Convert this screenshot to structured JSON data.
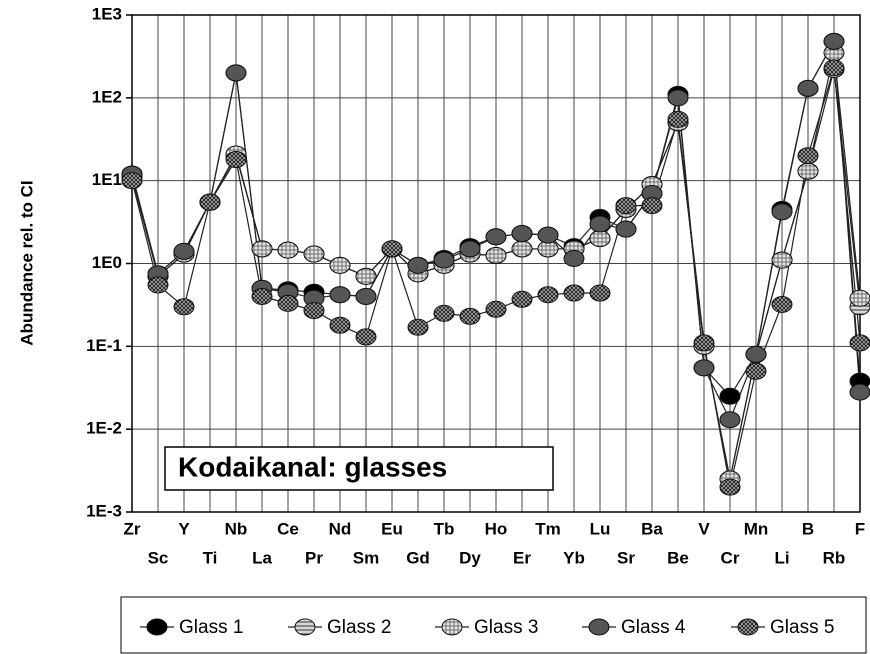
{
  "chart_data": {
    "type": "line",
    "y_label": "Abundance rel. to CI",
    "annotation": "Kodaikanal: glasses",
    "log_scale_y": true,
    "grid": true,
    "legend_position": "bottom",
    "categories": [
      "Zr",
      "Sc",
      "Y",
      "Ti",
      "Nb",
      "La",
      "Ce",
      "Pr",
      "Nd",
      "Sm",
      "Eu",
      "Gd",
      "Tb",
      "Dy",
      "Ho",
      "Er",
      "Tm",
      "Yb",
      "Lu",
      "Sr",
      "Ba",
      "Be",
      "V",
      "Cr",
      "Mn",
      "Li",
      "B",
      "Rb",
      "F"
    ],
    "ylim": [
      0.001,
      1000
    ],
    "yticks": [
      {
        "value": 1000,
        "label": "1E3"
      },
      {
        "value": 100,
        "label": "1E2"
      },
      {
        "value": 10,
        "label": "1E1"
      },
      {
        "value": 1,
        "label": "1E0"
      },
      {
        "value": 0.1,
        "label": "1E-1"
      },
      {
        "value": 0.01,
        "label": "1E-2"
      },
      {
        "value": 0.001,
        "label": "1E-3"
      }
    ],
    "series": [
      {
        "name": "Glass 1",
        "color": "#000000",
        "values": [
          12,
          0.75,
          1.4,
          5.5,
          200,
          0.5,
          0.48,
          0.45,
          0.42,
          0.4,
          1.5,
          0.95,
          1.15,
          1.6,
          2.1,
          2.3,
          2.2,
          1.6,
          3.6,
          2.6,
          7,
          110,
          0.055,
          0.025,
          0.08,
          4.5,
          130,
          480,
          0.038
        ]
      },
      {
        "name": "Glass 2",
        "color": "#d8d8d8",
        "values": [
          12,
          0.7,
          1.3,
          5.5,
          20,
          1.5,
          1.45,
          1.3,
          0.95,
          0.7,
          1.5,
          0.75,
          0.95,
          1.3,
          1.25,
          1.5,
          1.5,
          1.5,
          2,
          4.5,
          9,
          50,
          0.1,
          0.0025,
          0.08,
          1.1,
          13,
          220,
          0.3
        ]
      },
      {
        "name": "Glass 3",
        "color": "#e4e4e4",
        "values": [
          11,
          0.7,
          1.3,
          5.5,
          21,
          1.5,
          1.45,
          1.3,
          0.95,
          0.7,
          1.5,
          0.75,
          0.95,
          1.3,
          1.25,
          1.5,
          1.5,
          1.5,
          2,
          4.5,
          9,
          50,
          0.1,
          0.0025,
          0.08,
          1.1,
          13,
          350,
          0.38
        ]
      },
      {
        "name": "Glass 4",
        "color": "#555555",
        "values": [
          12,
          0.75,
          1.4,
          5.5,
          200,
          0.5,
          0.45,
          0.38,
          0.42,
          0.4,
          1.5,
          0.95,
          1.1,
          1.5,
          2.1,
          2.3,
          2.2,
          1.15,
          3,
          2.6,
          7,
          100,
          0.055,
          0.013,
          0.08,
          4.2,
          130,
          480,
          0.028
        ]
      },
      {
        "name": "Glass 5",
        "color": "#bbbbbb",
        "values": [
          10,
          0.55,
          0.3,
          5.5,
          18,
          0.4,
          0.33,
          0.27,
          0.18,
          0.13,
          1.5,
          0.17,
          0.25,
          0.23,
          0.28,
          0.37,
          0.42,
          0.44,
          0.44,
          5,
          5,
          55,
          0.11,
          0.002,
          0.05,
          0.32,
          20,
          230,
          0.11
        ]
      }
    ]
  }
}
